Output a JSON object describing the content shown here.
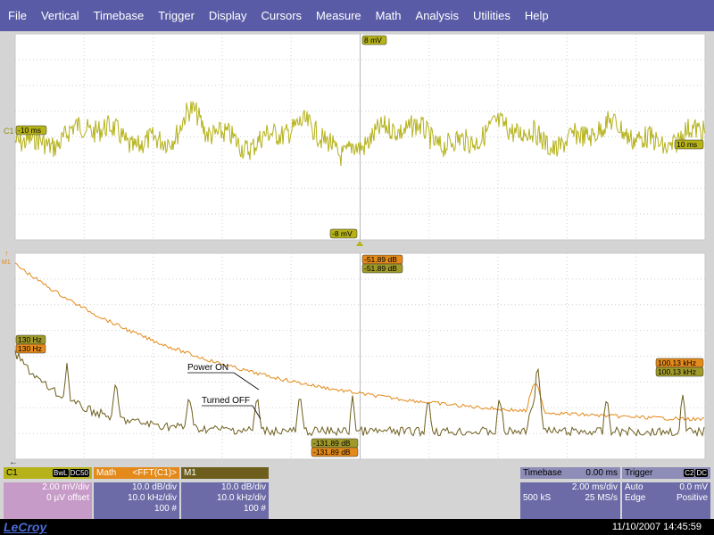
{
  "menu": [
    "File",
    "Vertical",
    "Timebase",
    "Trigger",
    "Display",
    "Cursors",
    "Measure",
    "Math",
    "Analysis",
    "Utilities",
    "Help"
  ],
  "colors": {
    "menubar": "#595ba6",
    "trace_c1": "#b5b21a",
    "trace_math": "#e38a1b",
    "trace_m1": "#6e5e1e",
    "grid_bg": "#ffffff",
    "panel_body": "#6c6ba8",
    "panel_c1_body": "#c79bc8"
  },
  "top_grid": {
    "channel_label": "C1",
    "top_level": "8 mV",
    "bottom_level": "-8 mV",
    "left_time": "-10 ms",
    "right_time": "10 ms"
  },
  "bottom_grid": {
    "marker_label": "M1",
    "top_level_math": "-51.89 dB",
    "top_level_m1": "-51.89 dB",
    "bottom_level_m1": "-131.89 dB",
    "bottom_level_math": "-131.89 dB",
    "left_freq_m1": "130 Hz",
    "left_freq_math": "130 Hz",
    "right_freq_math": "100.13 kHz",
    "right_freq_m1": "100.13 kHz",
    "annotation_on": "Power ON",
    "annotation_off": "Turned OFF"
  },
  "panels": {
    "c1": {
      "title": "C1",
      "tag1": "BwL",
      "tag2": "DC50",
      "line1": "2.00 mV/div",
      "line2": "0 µV offset"
    },
    "math": {
      "title": "Math",
      "func": "<FFT(C1)>",
      "line1": "10.0 dB/div",
      "line2": "10.0 kHz/div",
      "line3": "100 #"
    },
    "m1": {
      "title": "M1",
      "line1": "10.0 dB/div",
      "line2": "10.0 kHz/div",
      "line3": "100 #"
    },
    "timebase": {
      "title": "Timebase",
      "delay": "0.00 ms",
      "div": "2.00 ms/div",
      "samples": "500 kS",
      "rate": "25 MS/s"
    },
    "trigger": {
      "title": "Trigger",
      "tag": "C2",
      "tag2": "DC",
      "mode": "Auto",
      "level": "0.0 mV",
      "type": "Edge",
      "slope": "Positive"
    }
  },
  "status": {
    "brand": "LeCroy",
    "timestamp": "11/10/2007 14:45:59"
  }
}
